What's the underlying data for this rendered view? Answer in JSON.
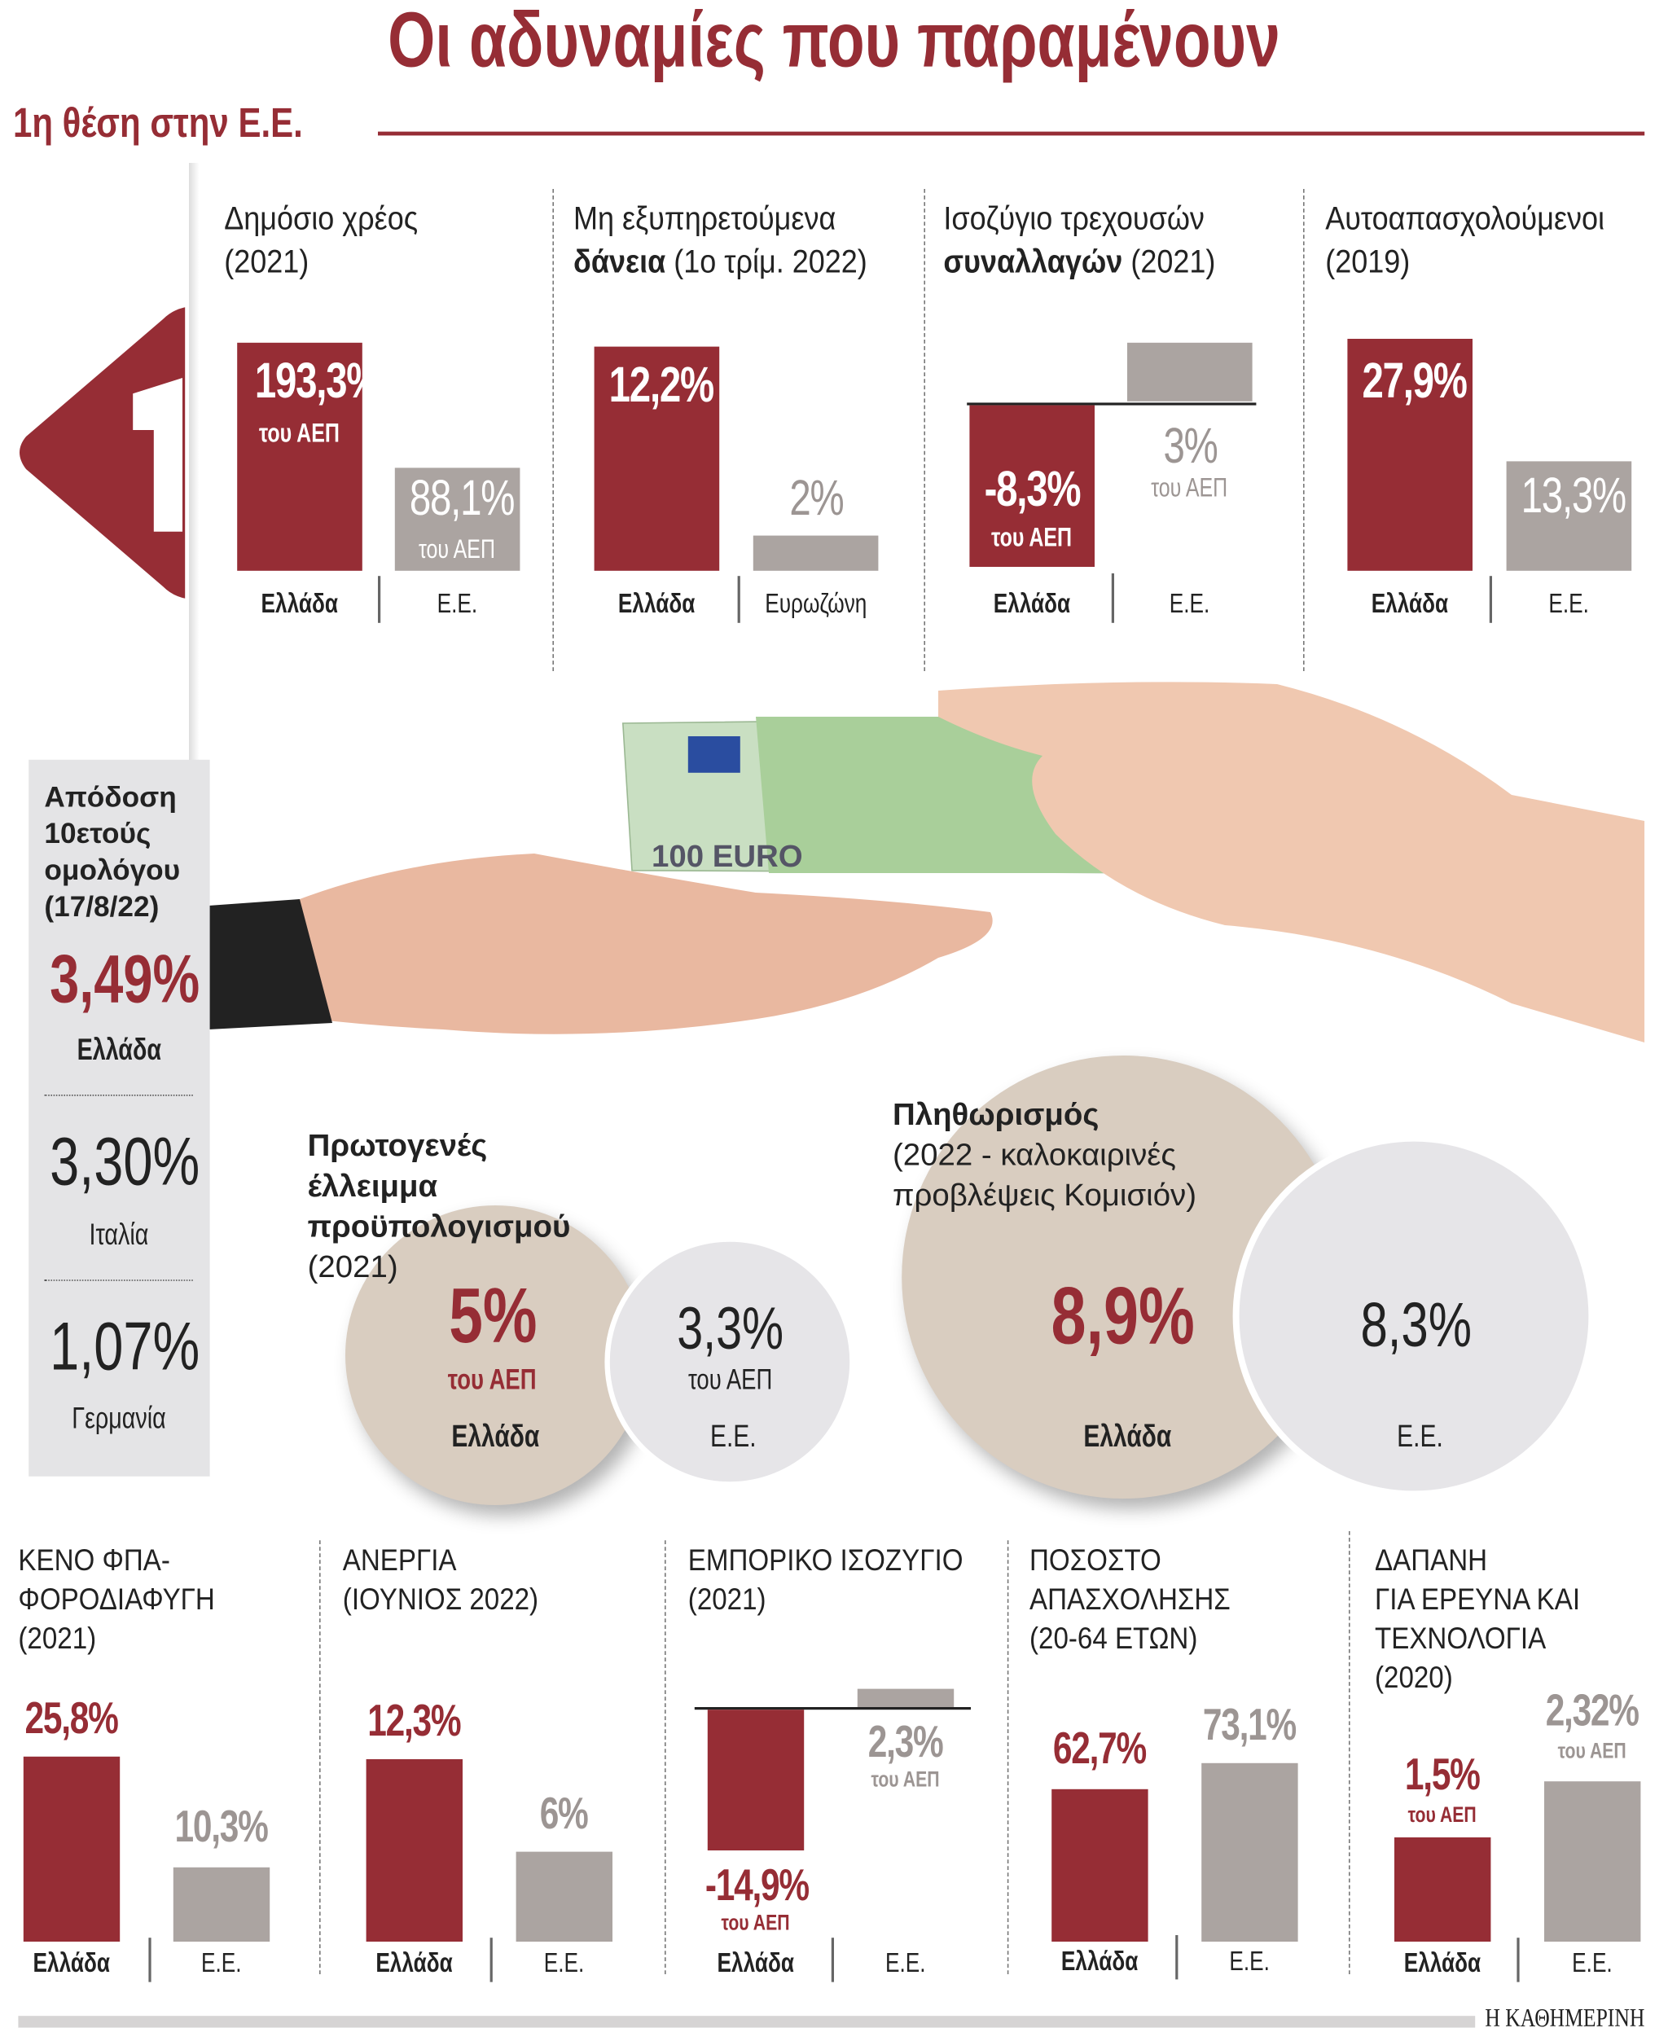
{
  "title": "Οι αδυναμίες που παραμένουν",
  "section_title": "1η θέση στην Ε.Ε.",
  "badge_number": "1",
  "colors": {
    "greece": "#962d35",
    "eu": "#aba4a1",
    "beige": "#d9cdc0",
    "light": "#e6e5e8"
  },
  "chart_data": [
    {
      "type": "bar",
      "title": "Δημόσιο χρέος",
      "subtitle": "(2021)",
      "categories": [
        "Ελλάδα",
        "Ε.Ε."
      ],
      "values": [
        193.3,
        88.1
      ],
      "labels": [
        "193,3%",
        "88,1%"
      ],
      "note": "του ΑΕΠ"
    },
    {
      "type": "bar",
      "title": "Μη εξυπηρετούμενα δάνεια",
      "subtitle": "(1ο τρίμ. 2022)",
      "categories": [
        "Ελλάδα",
        "Ευρωζώνη"
      ],
      "values": [
        12.2,
        2
      ],
      "labels": [
        "12,2%",
        "2%"
      ]
    },
    {
      "type": "bar",
      "title": "Ισοζύγιο τρεχουσών συναλλαγών",
      "subtitle": "(2021)",
      "categories": [
        "Ελλάδα",
        "Ε.Ε."
      ],
      "values": [
        -8.3,
        3
      ],
      "labels": [
        "-8,3%",
        "3%"
      ],
      "note": "του ΑΕΠ"
    },
    {
      "type": "bar",
      "title": "Αυτοαπασχολούμενοι",
      "subtitle": "(2019)",
      "categories": [
        "Ελλάδα",
        "Ε.Ε."
      ],
      "values": [
        27.9,
        13.3
      ],
      "labels": [
        "27,9%",
        "13,3%"
      ]
    },
    {
      "type": "table",
      "title": "Απόδοση 10ετούς ομολόγου (17/8/22)",
      "rows": [
        {
          "country": "Ελλάδα",
          "value": "3,49%"
        },
        {
          "country": "Ιταλία",
          "value": "3,30%"
        },
        {
          "country": "Γερμανία",
          "value": "1,07%"
        }
      ]
    },
    {
      "type": "bubble",
      "title": "Πρωτογενές έλλειμμα προϋπολογισμού",
      "subtitle": "(2021)",
      "categories": [
        "Ελλάδα",
        "Ε.Ε."
      ],
      "values": [
        5,
        3.3
      ],
      "labels": [
        "5%",
        "3,3%"
      ],
      "note": "του ΑΕΠ"
    },
    {
      "type": "bubble",
      "title": "Πληθωρισμός",
      "subtitle": "(2022 - καλοκαιρινές προβλέψεις Κομισιόν)",
      "categories": [
        "Ελλάδα",
        "Ε.Ε."
      ],
      "values": [
        8.9,
        8.3
      ],
      "labels": [
        "8,9%",
        "8,3%"
      ]
    },
    {
      "type": "bar",
      "title": "ΚΕΝΟ ΦΠΑ-ΦΟΡΟΔΙΑΦΥΓΗ",
      "subtitle": "(2021)",
      "categories": [
        "Ελλάδα",
        "Ε.Ε."
      ],
      "values": [
        25.8,
        10.3
      ],
      "labels": [
        "25,8%",
        "10,3%"
      ]
    },
    {
      "type": "bar",
      "title": "ΑΝΕΡΓΙΑ",
      "subtitle": "(ΙΟΥΝΙΟΣ 2022)",
      "categories": [
        "Ελλάδα",
        "Ε.Ε."
      ],
      "values": [
        12.3,
        6
      ],
      "labels": [
        "12,3%",
        "6%"
      ]
    },
    {
      "type": "bar",
      "title": "ΕΜΠΟΡΙΚΟ ΙΣΟΖΥΓΙΟ",
      "subtitle": "(2021)",
      "categories": [
        "Ελλάδα",
        "Ε.Ε."
      ],
      "values": [
        -14.9,
        2.3
      ],
      "labels": [
        "-14,9%",
        "2,3%"
      ],
      "note": "του ΑΕΠ"
    },
    {
      "type": "bar",
      "title": "ΠΟΣΟΣΤΟ ΑΠΑΣΧΟΛΗΣΗΣ",
      "subtitle": "(20-64 ΕΤΩΝ)",
      "categories": [
        "Ελλάδα",
        "Ε.Ε."
      ],
      "values": [
        62.7,
        73.1
      ],
      "labels": [
        "62,7%",
        "73,1%"
      ]
    },
    {
      "type": "bar",
      "title": "ΔΑΠΑΝΗ ΓΙΑ ΕΡΕΥΝΑ ΚΑΙ ΤΕΧΝΟΛΟΓΙΑ",
      "subtitle": "(2020)",
      "categories": [
        "Ελλάδα",
        "Ε.Ε."
      ],
      "values": [
        1.5,
        2.32
      ],
      "labels": [
        "1,5%",
        "2,32%"
      ],
      "note": "του ΑΕΠ"
    }
  ],
  "text": {
    "c1a": "Δημόσιο χρέος",
    "c2a": "Μη εξυπηρετούμενα",
    "c2b": "δάνεια",
    "c3a": "Ισοζύγιο τρεχουσών",
    "c3b": "συναλλαγών",
    "c4a": "Αυτοαπασχολούμενοι",
    "bondA": "Απόδοση",
    "bondB": "10ετούς",
    "bondC": "ομολόγου",
    "bondD": "(17/8/22)",
    "defA": "Πρωτογενές",
    "defB": "έλλειμμα",
    "defC": "προϋπολογισμού",
    "infA": "(2022 - καλοκαιρινές",
    "infB": "προβλέψεις Κομισιόν)",
    "b1a": "ΚΕΝΟ ΦΠΑ-",
    "b1b": "ΦΟΡΟΔΙΑΦΥΓΗ",
    "b4a": "ΠΟΣΟΣΤΟ",
    "b4b": "ΑΠΑΣΧΟΛΗΣΗΣ",
    "b5a": "ΔΑΠΑΝΗ",
    "b5b": "ΓΙΑ ΕΡΕΥΝΑ ΚΑΙ",
    "b5c": "ΤΕΧΝΟΛΟΓΙΑ",
    "banknote": "100 EURO"
  },
  "footer": "Η ΚΑΘΗΜΕΡΙΝΗ"
}
